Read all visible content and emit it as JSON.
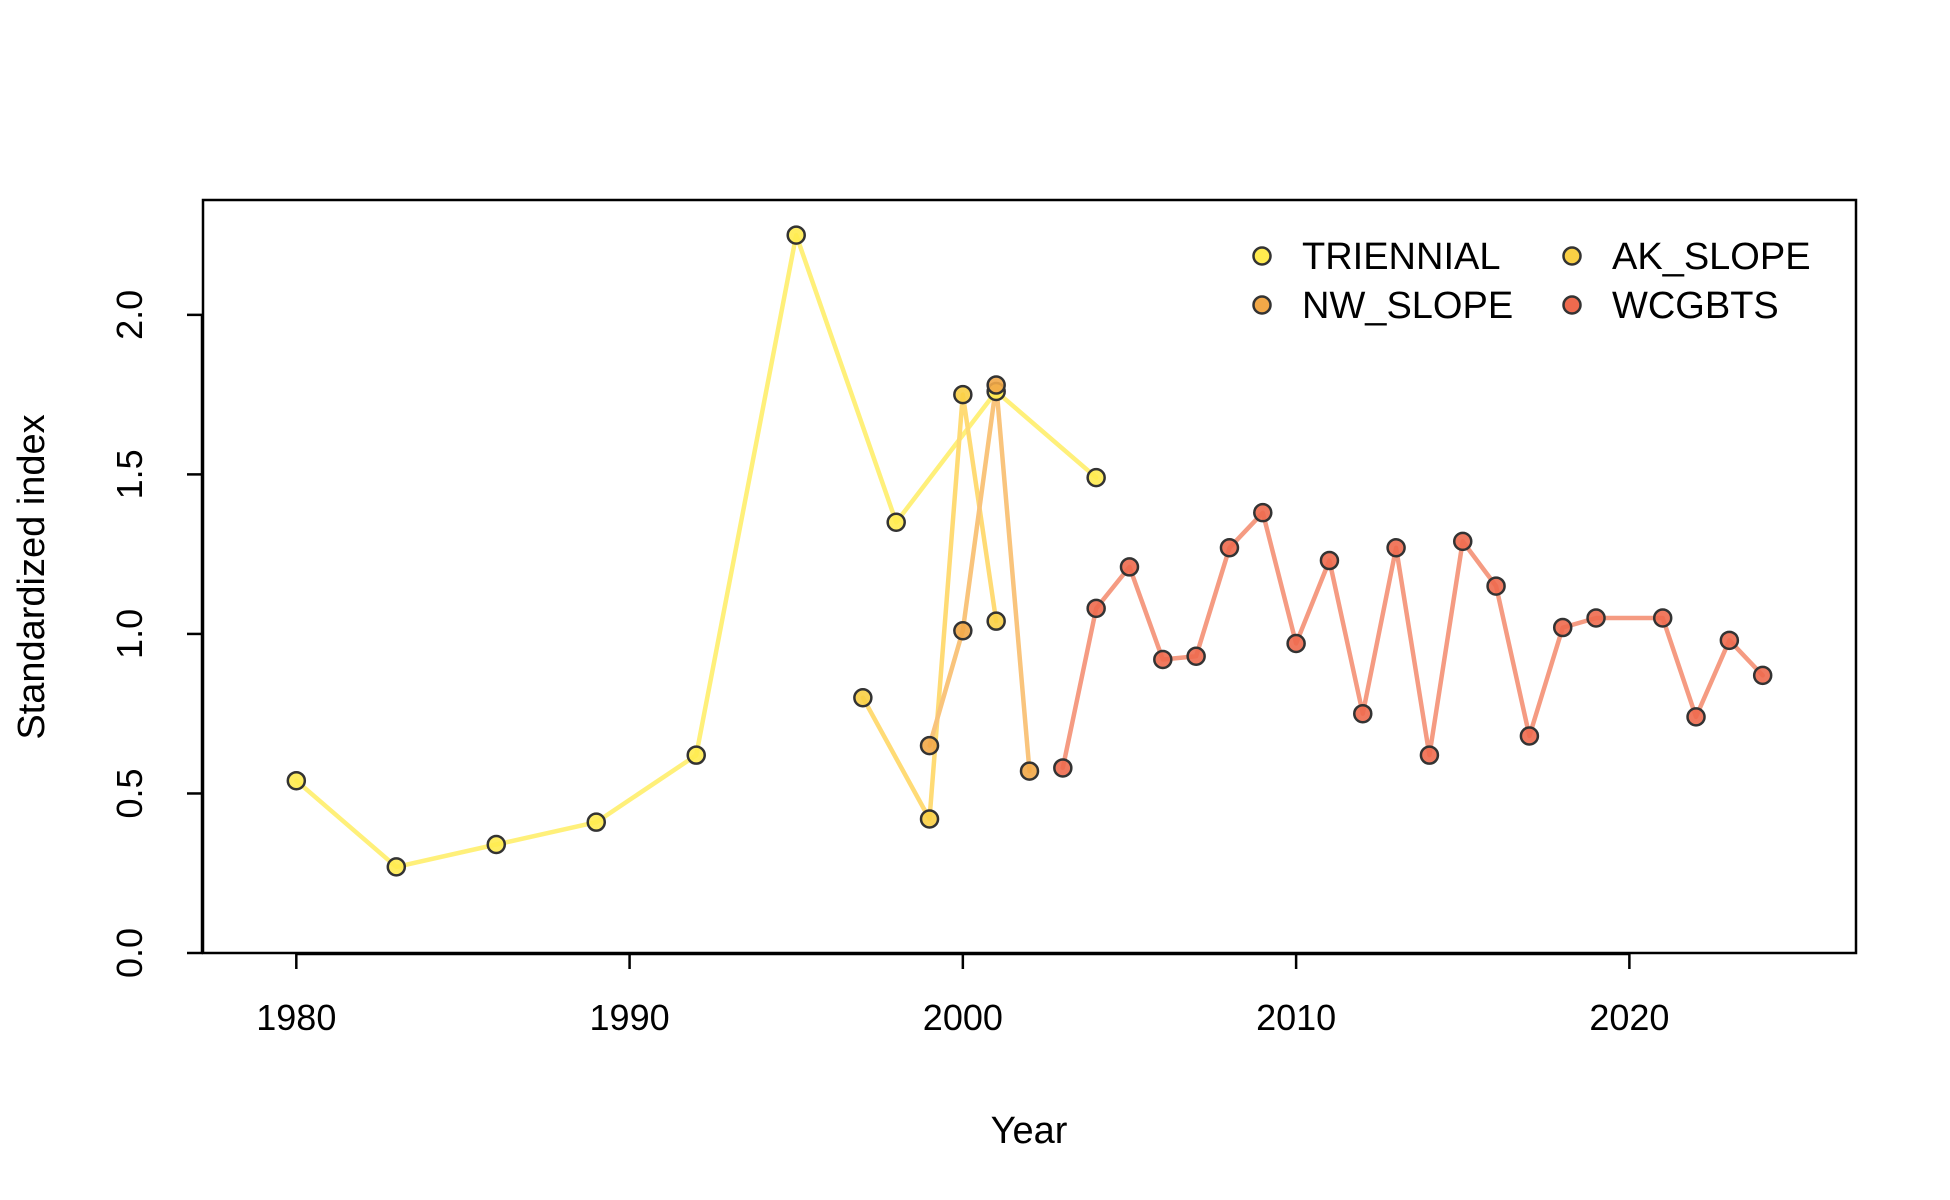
{
  "chart_data": {
    "type": "line",
    "title": "",
    "xlabel": "Year",
    "ylabel": "Standardized index",
    "xlim": [
      1977.2,
      2026.8
    ],
    "ylim": [
      0,
      2.36
    ],
    "xticks": [
      1980,
      1990,
      2000,
      2010,
      2020
    ],
    "yticks": [
      0.0,
      0.5,
      1.0,
      1.5,
      2.0
    ],
    "ytick_labels": [
      "0.0",
      "0.5",
      "1.0",
      "1.5",
      "2.0"
    ],
    "grid": false,
    "legend_position": "top-right",
    "legend_columns": 2,
    "series": [
      {
        "name": "TRIENNIAL",
        "line_color": "#FFF07A",
        "point_color": "#FFEB4F",
        "x": [
          1980,
          1983,
          1986,
          1989,
          1992,
          1995,
          1998,
          2001,
          2004
        ],
        "y": [
          0.54,
          0.27,
          0.34,
          0.41,
          0.62,
          2.25,
          1.35,
          1.76,
          1.49
        ]
      },
      {
        "name": "AK_SLOPE",
        "line_color": "#FFDB75",
        "point_color": "#F9CF45",
        "x": [
          1997,
          1999,
          2000,
          2001
        ],
        "y": [
          0.8,
          0.42,
          1.75,
          1.04
        ]
      },
      {
        "name": "NW_SLOPE",
        "line_color": "#F9C47C",
        "point_color": "#F2A848",
        "x": [
          1999,
          2000,
          2001,
          2002
        ],
        "y": [
          0.65,
          1.01,
          1.78,
          0.57
        ]
      },
      {
        "name": "WCGBTS",
        "line_color": "#F59B82",
        "point_color": "#EE6A4E",
        "x": [
          2003,
          2004,
          2005,
          2006,
          2007,
          2008,
          2009,
          2010,
          2011,
          2012,
          2013,
          2014,
          2015,
          2016,
          2017,
          2018,
          2019,
          2021,
          2022,
          2023,
          2024
        ],
        "y": [
          0.58,
          1.08,
          1.21,
          0.92,
          0.93,
          1.27,
          1.38,
          0.97,
          1.23,
          0.75,
          1.27,
          0.62,
          1.29,
          1.15,
          0.68,
          1.02,
          1.05,
          1.05,
          0.74,
          0.98,
          0.87
        ]
      }
    ]
  }
}
